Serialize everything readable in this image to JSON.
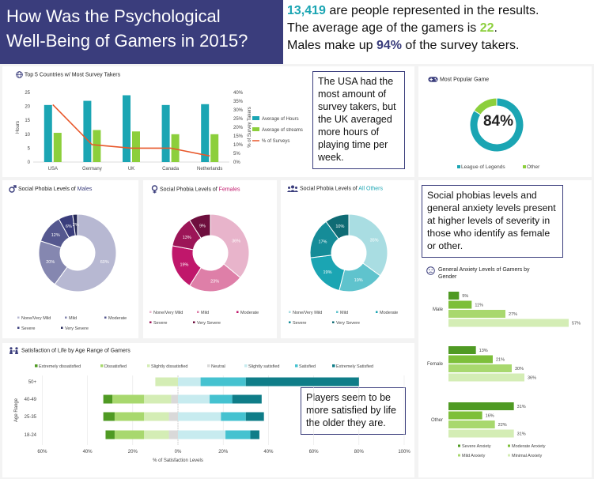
{
  "header": {
    "title_line1": "How Was the Psychological",
    "title_line2": "Well-Being of Gamers in 2015?"
  },
  "stats": {
    "line1_value": "13,419",
    "line1_text": " are people represented in the results.",
    "line2_text": "The average age of the gamers is ",
    "line2_value": "22",
    "line2_end": ".",
    "line3_text": "Males make up ",
    "line3_value": "94%",
    "line3_end": " of the survey takers."
  },
  "notes": {
    "usa": "The USA had the most amount of survey takers, but the UK averaged more hours of playing time per week.",
    "phobia": "Social phobias levels and general anxiety levels present at higher levels of severity in those who identify as female or other.",
    "satisfaction": "Players seem to be more satisfied by life the older they are."
  },
  "colors": {
    "navy": "#3a3d7c",
    "teal": "#1ba5b3",
    "green": "#8ccf3c",
    "orange": "#e8572a",
    "female": "#c0176b",
    "others": "#1ba5b3"
  },
  "icons": {
    "countries": "globe-icon",
    "game": "gamepad-icon",
    "males": "male-symbol-icon",
    "females": "female-symbol-icon",
    "others": "group-icon",
    "anxiety": "anxious-face-icon",
    "satisfaction": "people-icon"
  },
  "chart_data": [
    {
      "id": "countries",
      "type": "bar",
      "title": "Top 5 Countries w/ Most Survey Takers",
      "categories": [
        "USA",
        "Germany",
        "UK",
        "Canada",
        "Netherlands"
      ],
      "series": [
        {
          "name": "Average of Hours",
          "values": [
            20.5,
            22,
            24,
            20.5,
            20.8
          ],
          "color": "#1ba5b3"
        },
        {
          "name": "Average of streams",
          "values": [
            10.5,
            11.5,
            11,
            10,
            10
          ],
          "color": "#8ccf3c"
        },
        {
          "name": "% of Surveys",
          "axis": "right",
          "kind": "line",
          "values": [
            33,
            10,
            8,
            8,
            3.5
          ],
          "color": "#e8572a"
        }
      ],
      "ylabel": "Hours",
      "y2label": "% of Survey Takers",
      "ylim": [
        0,
        25
      ],
      "yticks": [
        "0",
        "5",
        "10",
        "15",
        "20",
        "25"
      ],
      "y2lim": [
        0,
        40
      ],
      "y2ticks": [
        "0%",
        "5%",
        "10%",
        "15%",
        "20%",
        "25%",
        "30%",
        "35%",
        "40%"
      ]
    },
    {
      "id": "game",
      "type": "pie",
      "title": "Most Popular Game",
      "center_label": "84%",
      "labels": [
        "League of Legends",
        "Other"
      ],
      "values": [
        84,
        16
      ],
      "colors": [
        "#1ba5b3",
        "#8ccf3c"
      ]
    },
    {
      "id": "males",
      "type": "pie",
      "title_prefix": "Social Phobia Levels of ",
      "title_highlight": "Males",
      "labels": [
        "None/Very Mild",
        "Mild",
        "Moderate",
        "Severe",
        "Very Severe"
      ],
      "values": [
        60,
        20,
        12,
        6,
        2
      ],
      "data_labels": [
        "60%",
        "20%",
        "12%",
        "6%",
        "2%"
      ],
      "colors": [
        "#b7b8d2",
        "#8587b0",
        "#55588f",
        "#3a3d7c",
        "#252858"
      ]
    },
    {
      "id": "females",
      "type": "pie",
      "title_prefix": "Social Phobia Levels of ",
      "title_highlight": "Females",
      "labels": [
        "None/Very Mild",
        "Mild",
        "Moderate",
        "Severe",
        "Very Severe"
      ],
      "values": [
        36,
        23,
        19,
        13,
        9
      ],
      "data_labels": [
        "36%",
        "23%",
        "19%",
        "13%",
        "9%"
      ],
      "colors": [
        "#e8b4cb",
        "#de7fa8",
        "#c0176b",
        "#9c1557",
        "#6e0f3e"
      ]
    },
    {
      "id": "others",
      "type": "pie",
      "title_prefix": "Social Phobia Levels of ",
      "title_highlight": "All Others",
      "labels": [
        "None/Very Mild",
        "Mild",
        "Moderate",
        "Severe",
        "Very Severe"
      ],
      "values": [
        35,
        19,
        19,
        17,
        10
      ],
      "data_labels": [
        "35%",
        "19%",
        "19%",
        "17%",
        "10%"
      ],
      "colors": [
        "#a9dde2",
        "#5fc3cd",
        "#1ba5b3",
        "#158c98",
        "#0f6b74"
      ]
    },
    {
      "id": "anxiety",
      "type": "bar",
      "orientation": "horizontal",
      "title": "General Anxiety Levels of Gamers by Gender",
      "categories": [
        "Male",
        "Female",
        "Other"
      ],
      "series": [
        {
          "name": "Severe Anxiety",
          "values": [
            5,
            13,
            31
          ],
          "labels": [
            "5%",
            "13%",
            "31%"
          ],
          "color": "#4f9a23"
        },
        {
          "name": "Moderate Anxiety",
          "values": [
            11,
            21,
            16
          ],
          "labels": [
            "11%",
            "21%",
            "16%"
          ],
          "color": "#7dbf3a"
        },
        {
          "name": "Mild Anxiety",
          "values": [
            27,
            30,
            22
          ],
          "labels": [
            "27%",
            "30%",
            "22%"
          ],
          "color": "#a8d86e"
        },
        {
          "name": "Minimal Anxiety",
          "values": [
            57,
            36,
            31
          ],
          "labels": [
            "57%",
            "36%",
            "31%"
          ],
          "color": "#d4edb5"
        }
      ],
      "xlim": [
        0,
        60
      ]
    },
    {
      "id": "satisfaction",
      "type": "bar",
      "orientation": "horizontal",
      "stacked": "diverging",
      "title": "Satisfaction of Life by Age Range of Gamers",
      "categories": [
        "50+",
        "40-49",
        "25-35",
        "18-24"
      ],
      "series": [
        {
          "name": "Extremely dissatisfied",
          "side": "negative",
          "values": [
            0,
            4,
            5,
            4
          ],
          "color": "#4f9a23"
        },
        {
          "name": "Dissatisfied",
          "side": "negative",
          "values": [
            0,
            14,
            13,
            13
          ],
          "color": "#a8d86e"
        },
        {
          "name": "Slightly dissatisfied",
          "side": "negative",
          "values": [
            10,
            12,
            11,
            11
          ],
          "color": "#d4edb5"
        },
        {
          "name": "Neutral",
          "side": "negative",
          "values": [
            0,
            3,
            4,
            4
          ],
          "color": "#d9d9d9"
        },
        {
          "name": "Slightly satisfied",
          "side": "positive",
          "values": [
            10,
            14,
            19,
            21
          ],
          "color": "#c7ebef"
        },
        {
          "name": "Satisfied",
          "side": "positive",
          "values": [
            20,
            10,
            11,
            11
          ],
          "color": "#45c2d0"
        },
        {
          "name": "Extremely Satisfied",
          "side": "positive",
          "values": [
            50,
            13,
            8,
            4
          ],
          "color": "#0f7d88"
        }
      ],
      "ylabel": "Age Range",
      "xlabel": "% of Satisfaction Levels",
      "xlim": [
        -60,
        100
      ],
      "xticks": [
        "60%",
        "40%",
        "20%",
        "0%",
        "20%",
        "40%",
        "60%",
        "80%",
        "100%"
      ]
    }
  ]
}
